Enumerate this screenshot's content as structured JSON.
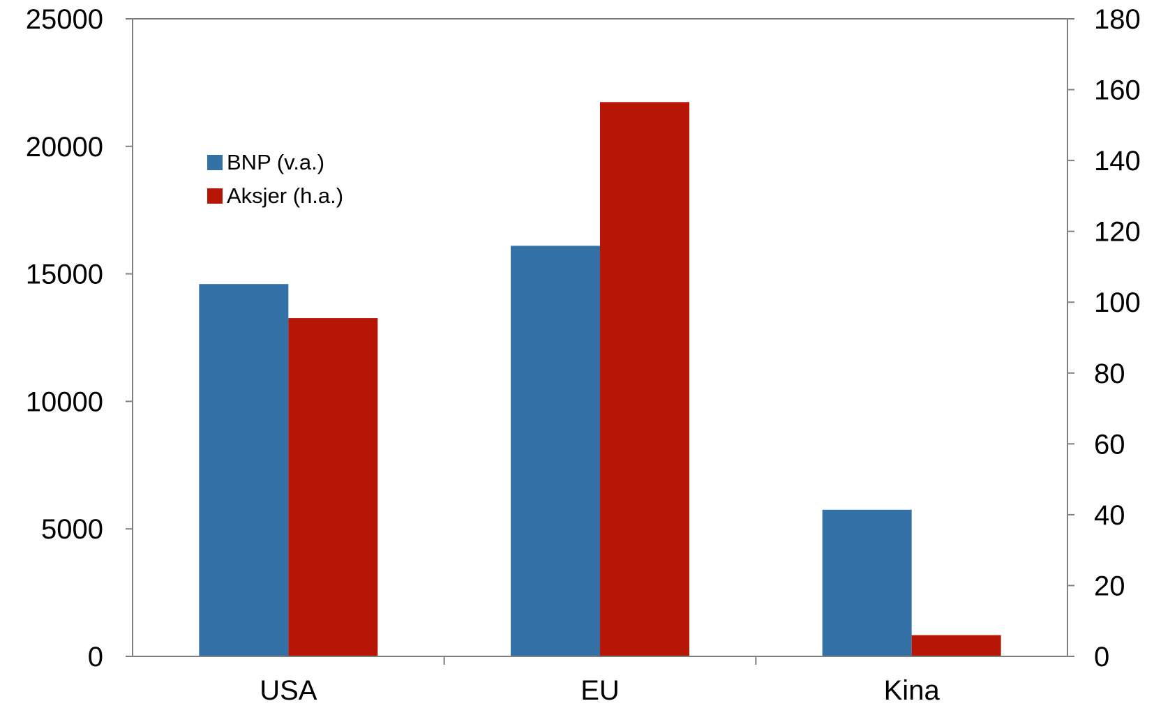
{
  "chart_data": {
    "type": "bar",
    "categories": [
      "USA",
      "EU",
      "Kina"
    ],
    "series": [
      {
        "name": "BNP (v.a.)",
        "axis": "left",
        "color": "#3471a7",
        "values": [
          14600,
          16100,
          5750
        ]
      },
      {
        "name": "Aksjer (h.a.)",
        "axis": "right",
        "color": "#b71506",
        "values": [
          95.5,
          156.5,
          6
        ]
      }
    ],
    "y_left": {
      "min": 0,
      "max": 25000,
      "ticks": [
        0,
        5000,
        10000,
        15000,
        20000,
        25000
      ]
    },
    "y_right": {
      "min": 0,
      "max": 180,
      "ticks": [
        0,
        20,
        40,
        60,
        80,
        100,
        120,
        140,
        160,
        180
      ]
    },
    "legend_position": "top-left",
    "grid": false
  }
}
